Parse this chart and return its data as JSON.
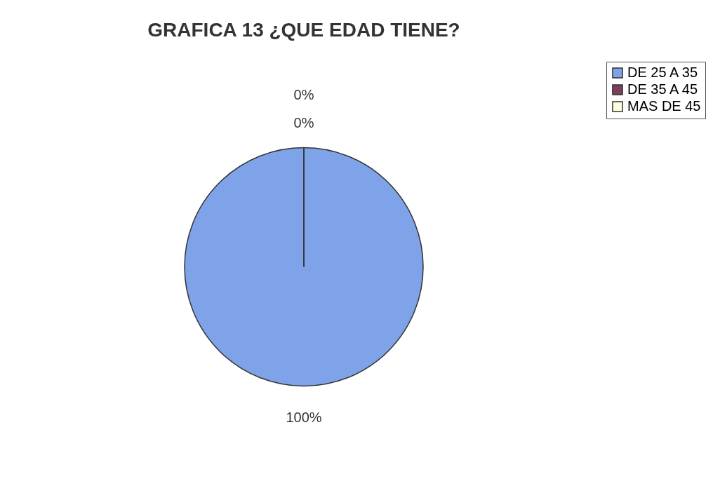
{
  "chart_data": {
    "type": "pie",
    "title": "GRAFICA 13 ¿QUE EDAD TIENE?",
    "categories": [
      "DE 25 A 35",
      "DE 35 A 45",
      "MAS DE 45"
    ],
    "values": [
      100,
      0,
      0
    ],
    "colors": [
      "#7fa3e8",
      "#7b3f5e",
      "#ffffe0"
    ],
    "value_labels": [
      "100%",
      "0%",
      "0%"
    ],
    "legend": "right"
  }
}
